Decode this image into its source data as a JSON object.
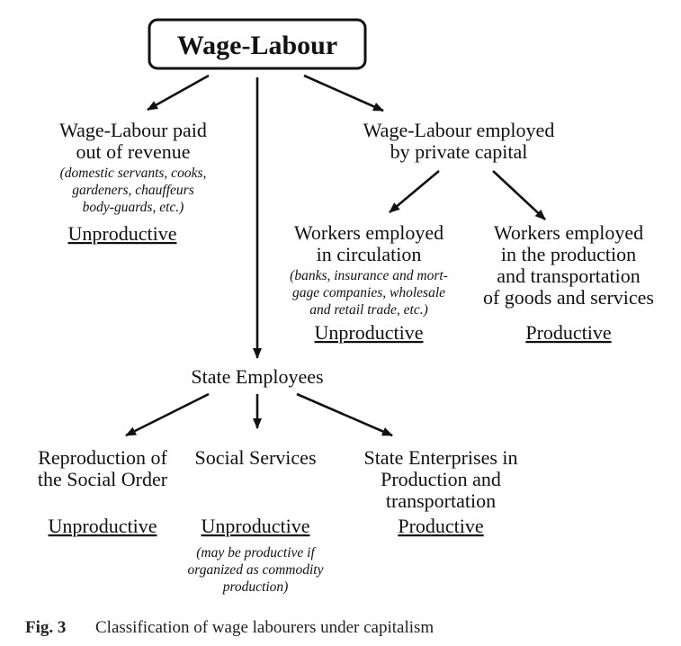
{
  "root": {
    "title": "Wage-Labour"
  },
  "revenue": {
    "heading": [
      "Wage-Labour paid",
      "out of revenue"
    ],
    "examples": [
      "(domestic servants, cooks,",
      "gardeners, chauffeurs",
      "body-guards, etc.)"
    ],
    "verdict": "Unproductive"
  },
  "private_capital": {
    "heading": [
      "Wage-Labour employed",
      "by private capital"
    ]
  },
  "circulation": {
    "heading": [
      "Workers employed",
      "in circulation"
    ],
    "examples": [
      "(banks, insurance and mort-",
      "gage companies, wholesale",
      "and retail trade, etc.)"
    ],
    "verdict": "Unproductive"
  },
  "production": {
    "heading": [
      "Workers employed",
      "in the production",
      "and transportation",
      "of goods and services"
    ],
    "verdict": "Productive"
  },
  "state": {
    "heading": "State Employees"
  },
  "reproduction": {
    "heading": [
      "Reproduction of",
      "the Social Order"
    ],
    "verdict": "Unproductive"
  },
  "social_services": {
    "heading": "Social Services",
    "verdict": "Unproductive",
    "note": [
      "(may be productive if",
      "organized as commodity",
      "production)"
    ]
  },
  "state_enterprises": {
    "heading": [
      "State Enterprises in",
      "Production and",
      "transportation"
    ],
    "verdict": "Productive"
  },
  "caption": {
    "label": "Fig. 3",
    "text": "Classification of wage labourers under capitalism"
  }
}
